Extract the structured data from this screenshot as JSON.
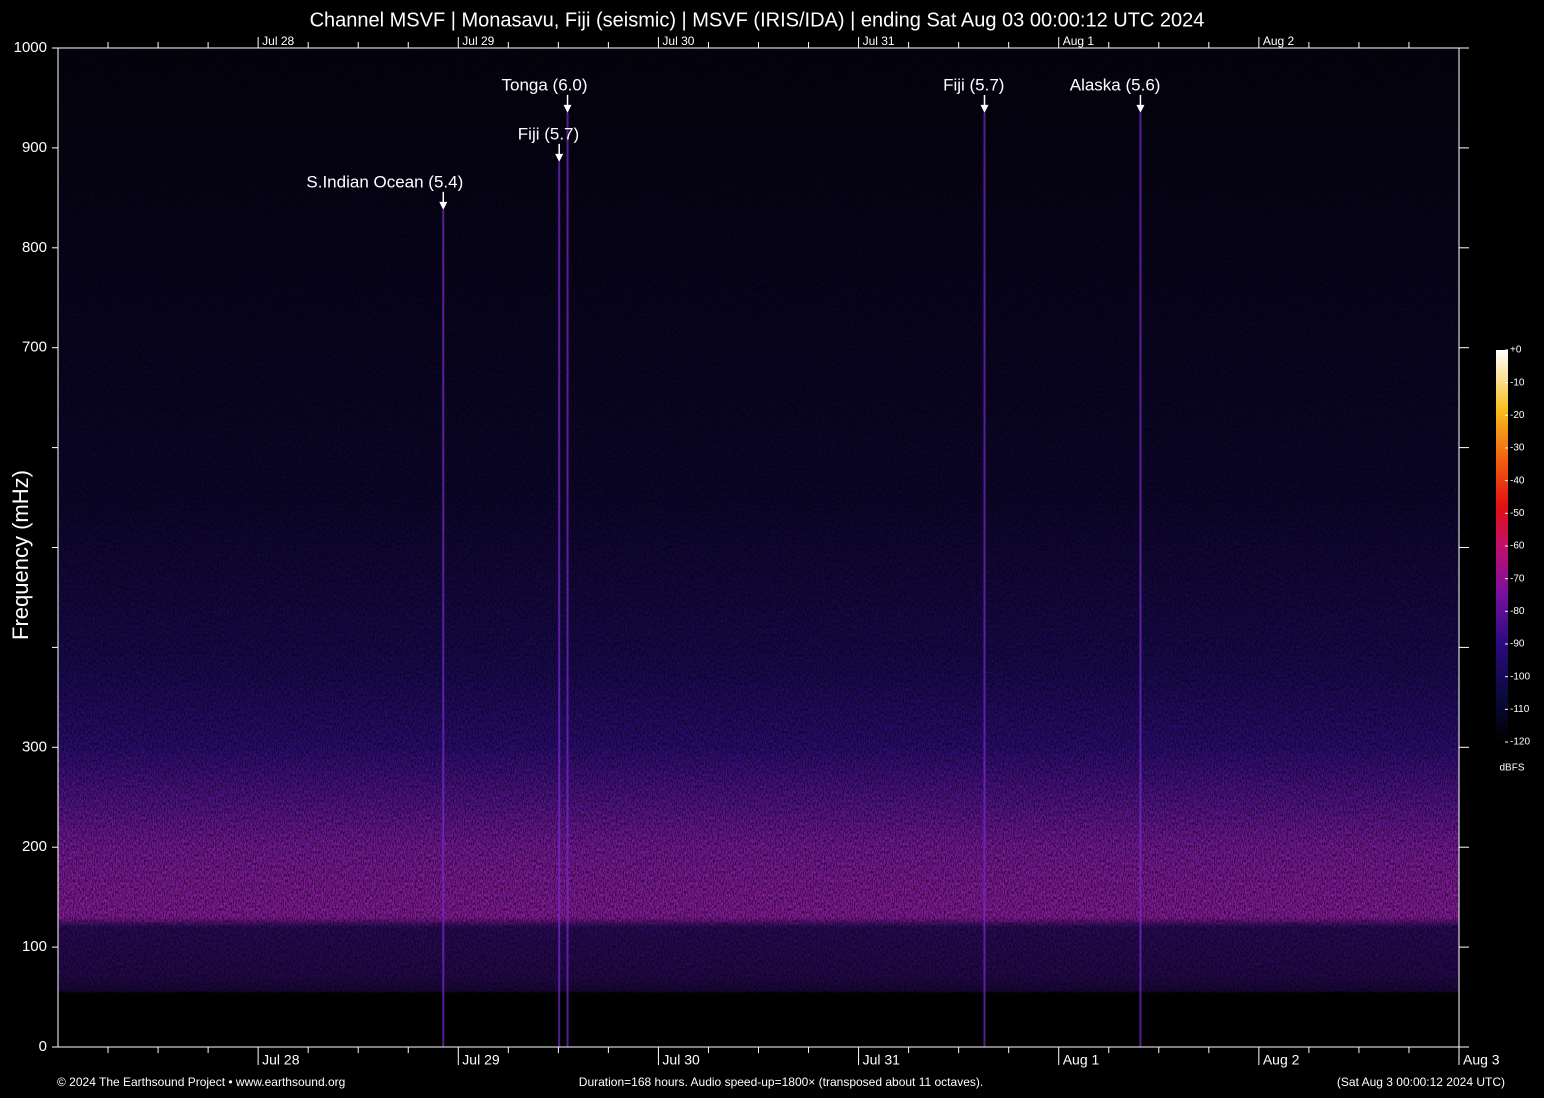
{
  "chart_data": {
    "type": "spectrogram",
    "title": "Channel MSVF | Monasavu, Fiji (seismic) | MSVF (IRIS/IDA) | ending Sat Aug 03 00:00:12 UTC 2024",
    "ylabel": "Frequency (mHz)",
    "ylim": [
      0,
      1000
    ],
    "yticks": [
      0,
      100,
      200,
      300,
      700,
      800,
      900,
      1000
    ],
    "minor_yticks": [
      400,
      500,
      600
    ],
    "xlim": [
      0,
      168
    ],
    "xticks": [
      {
        "value": 24,
        "label": "Jul 28"
      },
      {
        "value": 48,
        "label": "Jul 29"
      },
      {
        "value": 72,
        "label": "Jul 30"
      },
      {
        "value": 96,
        "label": "Jul 31"
      },
      {
        "value": 120,
        "label": "Aug  1"
      },
      {
        "value": 144,
        "label": "Aug  2"
      },
      {
        "value": 168,
        "label": "Aug  3"
      }
    ],
    "minor_xticks": [
      6,
      12,
      18,
      30,
      36,
      42,
      54,
      60,
      66,
      78,
      84,
      90,
      102,
      108,
      114,
      126,
      132,
      138,
      150,
      156,
      162
    ],
    "annotations": [
      {
        "text": "S.Indian Ocean (5.4)",
        "x": 46.2,
        "y": 838
      },
      {
        "text": "Fiji (5.7)",
        "x": 60.1,
        "y": 886
      },
      {
        "text": "Tonga (6.0)",
        "x": 61.1,
        "y": 935
      },
      {
        "text": "Fiji (5.7)",
        "x": 111.1,
        "y": 935
      },
      {
        "text": "Alaska (5.6)",
        "x": 129.8,
        "y": 935
      }
    ],
    "colorbar": {
      "label": "dBFS",
      "lim": [
        -120,
        0
      ],
      "ticks": [
        {
          "value": 0,
          "label": "+0"
        },
        -10,
        -20,
        -30,
        -40,
        -50,
        -60,
        -70,
        -80,
        -90,
        -100,
        -110,
        -120
      ]
    },
    "footer": {
      "left": "© 2024 The Earthsound Project • www.earthsound.org",
      "center": "Duration=168 hours. Audio speed-up=1800× (transposed about 11 octaves).",
      "right": "(Sat Aug  3 00:00:12 2024 UTC)"
    }
  }
}
